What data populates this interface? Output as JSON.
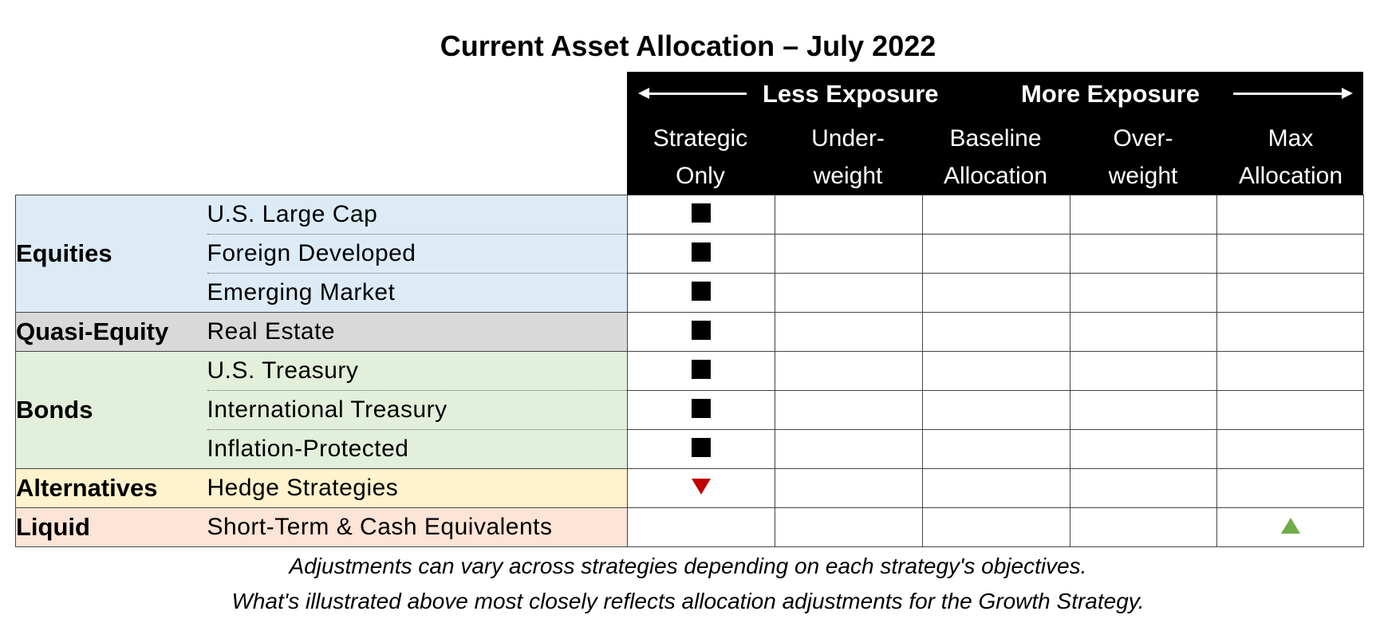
{
  "title": "Current Asset Allocation – July 2022",
  "header": {
    "less_exposure": "Less Exposure",
    "more_exposure": "More Exposure",
    "columns": [
      {
        "line1": "Strategic",
        "line2": "Only"
      },
      {
        "line1": "Under-",
        "line2": "weight"
      },
      {
        "line1": "Baseline",
        "line2": "Allocation"
      },
      {
        "line1": "Over-",
        "line2": "weight"
      },
      {
        "line1": "Max",
        "line2": "Allocation"
      }
    ]
  },
  "categories": {
    "equities": "Equities",
    "quasi_equity": "Quasi-Equity",
    "bonds": "Bonds",
    "alternatives": "Alternatives",
    "liquid": "Liquid"
  },
  "rows": [
    {
      "label": "U.S. Large Cap",
      "marker_column": "Strategic Only",
      "marker": "square"
    },
    {
      "label": "Foreign Developed",
      "marker_column": "Strategic Only",
      "marker": "square"
    },
    {
      "label": "Emerging Market",
      "marker_column": "Strategic Only",
      "marker": "square"
    },
    {
      "label": "Real Estate",
      "marker_column": "Strategic Only",
      "marker": "square"
    },
    {
      "label": "U.S. Treasury",
      "marker_column": "Strategic Only",
      "marker": "square"
    },
    {
      "label": "International Treasury",
      "marker_column": "Strategic Only",
      "marker": "square"
    },
    {
      "label": "Inflation-Protected",
      "marker_column": "Strategic Only",
      "marker": "square"
    },
    {
      "label": "Hedge Strategies",
      "marker_column": "Strategic Only",
      "marker": "down-triangle"
    },
    {
      "label": "Short-Term & Cash Equivalents",
      "marker_column": "Max Allocation",
      "marker": "up-triangle"
    }
  ],
  "colors": {
    "equities": "#ddebf7",
    "quasi_equity": "#d9d9d9",
    "bonds": "#e2efda",
    "alternatives": "#fff2cc",
    "liquid": "#fce4d6",
    "down_marker": "#c00000",
    "up_marker": "#70ad47"
  },
  "notes": {
    "line1": "Adjustments can vary across strategies depending on each strategy's objectives.",
    "line2": "What's illustrated above most closely reflects allocation adjustments for the Growth Strategy."
  }
}
